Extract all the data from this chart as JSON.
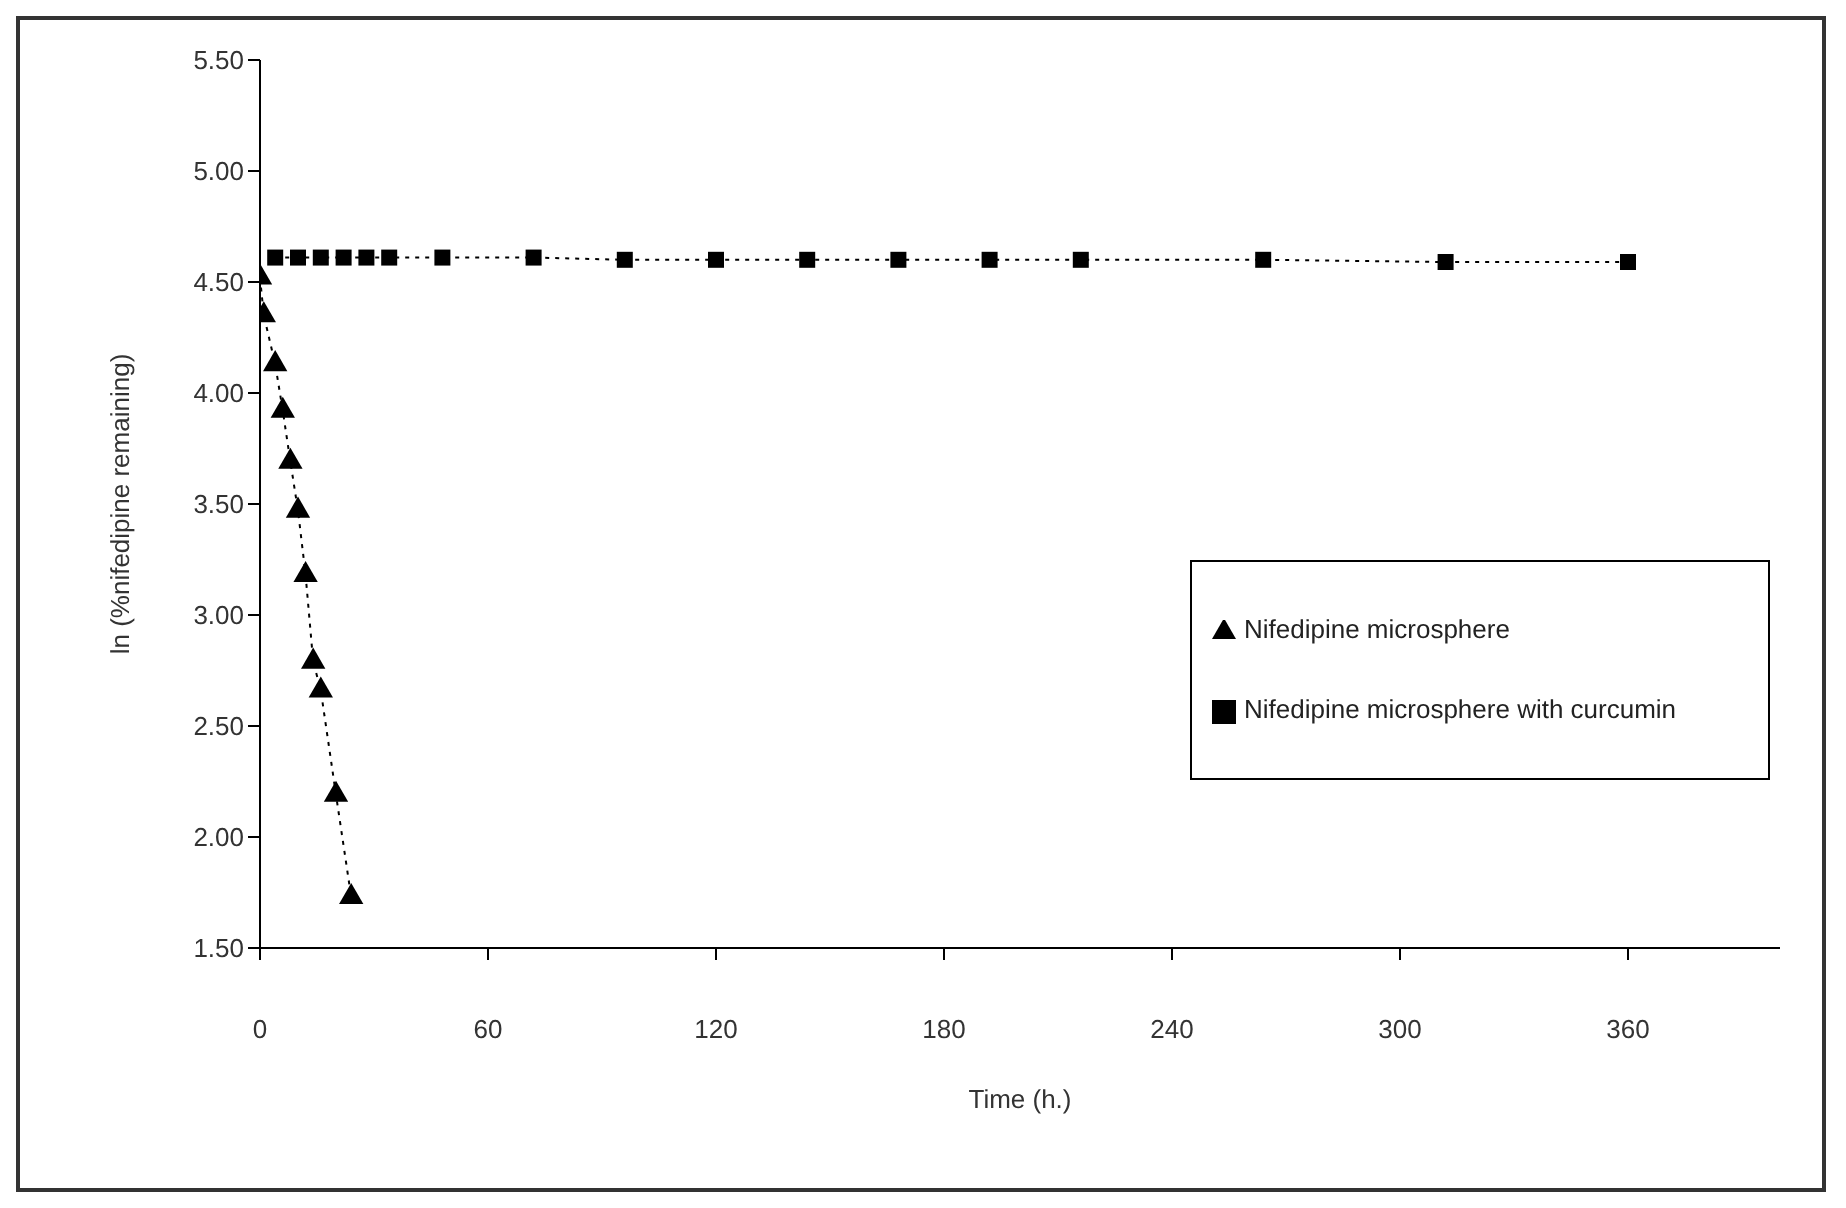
{
  "chart_data": {
    "type": "line",
    "xlabel": "Time (h.)",
    "ylabel": "ln (%nifedipine remaining)",
    "xlim": [
      0,
      400
    ],
    "xticks": [
      0,
      60,
      120,
      180,
      240,
      300,
      360
    ],
    "ylim": [
      1.5,
      5.5
    ],
    "yticks": [
      {
        "value": 1.5,
        "label": "1.50"
      },
      {
        "value": 2,
        "label": "2.00"
      },
      {
        "value": 2.5,
        "label": "2.50"
      },
      {
        "value": 3,
        "label": "3.00"
      },
      {
        "value": 3.5,
        "label": "3.50"
      },
      {
        "value": 4,
        "label": "4.00"
      },
      {
        "value": 4.5,
        "label": "4.50"
      },
      {
        "value": 5,
        "label": "5.00"
      },
      {
        "value": 5.5,
        "label": "5.50"
      }
    ],
    "legend": "right",
    "grid": false,
    "line_style": "dotted",
    "series": [
      {
        "name": "Nifedipine microsphere",
        "color": "#000000",
        "marker": "triangle",
        "x": [
          0,
          1,
          4,
          6,
          8,
          10,
          12,
          14,
          16,
          20,
          24
        ],
        "values": [
          4.52,
          4.35,
          4.13,
          3.92,
          3.69,
          3.47,
          3.18,
          2.79,
          2.66,
          2.19,
          1.73
        ]
      },
      {
        "name": "Nifedipine microsphere with curcumin",
        "color": "#000000",
        "marker": "square",
        "x": [
          4,
          10,
          16,
          22,
          28,
          34,
          48,
          72,
          96,
          120,
          144,
          168,
          192,
          216,
          264,
          312,
          360
        ],
        "values": [
          4.61,
          4.61,
          4.61,
          4.61,
          4.61,
          4.61,
          4.61,
          4.61,
          4.6,
          4.6,
          4.6,
          4.6,
          4.6,
          4.6,
          4.6,
          4.59,
          4.59
        ]
      }
    ]
  }
}
